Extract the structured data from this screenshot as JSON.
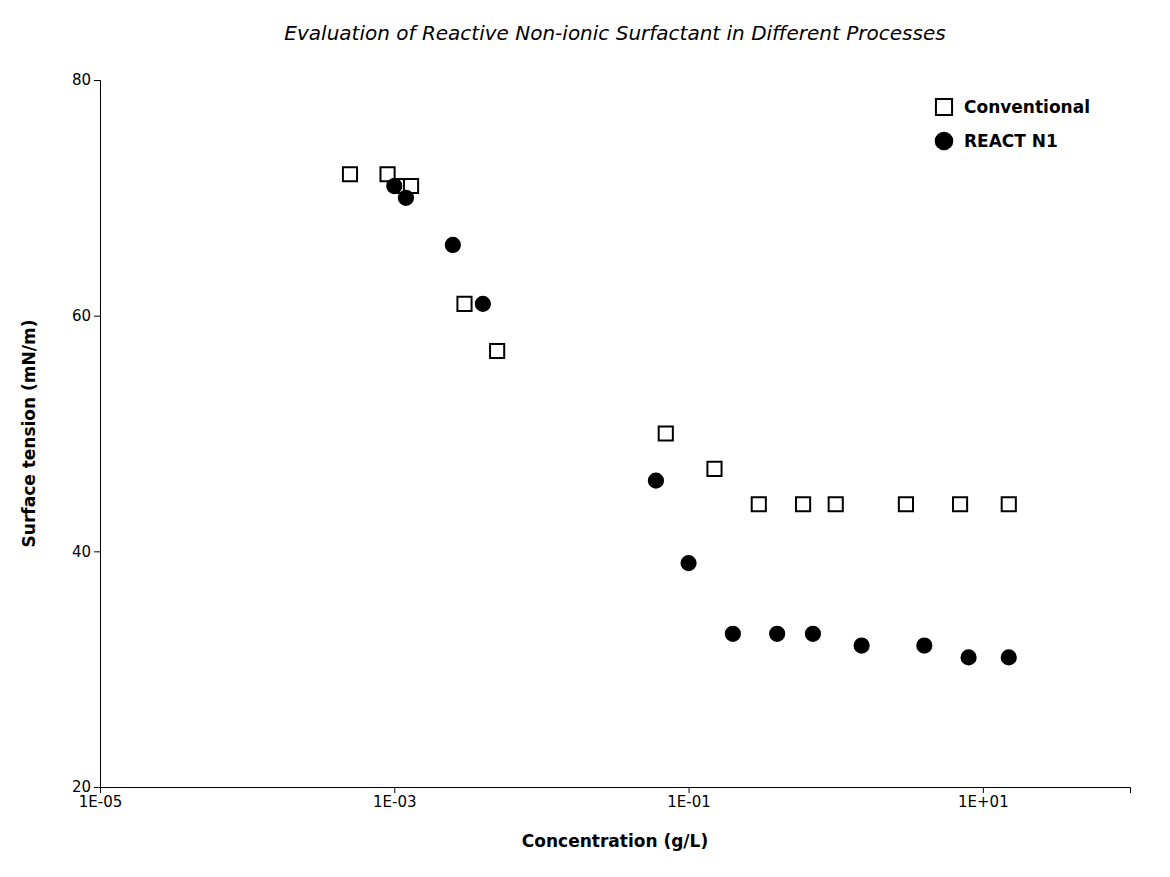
{
  "chart_data": {
    "type": "scatter",
    "title": "Evaluation of Reactive Non-ionic Surfactant in Different Processes",
    "xlabel": "Concentration (g/L)",
    "ylabel": "Surface tension (mN/m)",
    "log": "x",
    "xlim": [
      1e-05,
      100
    ],
    "xticks": [
      {
        "value": 1e-05,
        "label": "1E-05"
      },
      {
        "value": 0.001,
        "label": "1E-03"
      },
      {
        "value": 0.1,
        "label": "1E-01"
      },
      {
        "value": 10,
        "label": "1E+01"
      }
    ],
    "ylim": [
      20,
      80
    ],
    "yticks": [
      20,
      40,
      60,
      80
    ],
    "grid": false,
    "legend": "upper right",
    "series": [
      {
        "name": "Conventional",
        "marker": "open-square",
        "color": "#000000",
        "x": [
          0.0005,
          0.0009,
          0.0011,
          0.0013,
          0.003,
          0.005,
          0.07,
          0.15,
          0.3,
          0.6,
          1.0,
          3.0,
          7.0,
          15.0
        ],
        "values": [
          72,
          72,
          71,
          71,
          61,
          57,
          50,
          47,
          44,
          44,
          44,
          44,
          44,
          44
        ]
      },
      {
        "name": "REACT N1",
        "marker": "circle",
        "color": "#000000",
        "x": [
          0.001,
          0.0012,
          0.0025,
          0.004,
          0.06,
          0.1,
          0.2,
          0.4,
          0.7,
          1.5,
          4.0,
          8.0,
          15.0
        ],
        "values": [
          71,
          70,
          66,
          61,
          46,
          39,
          33,
          33,
          33,
          32,
          32,
          31,
          31
        ]
      }
    ]
  }
}
